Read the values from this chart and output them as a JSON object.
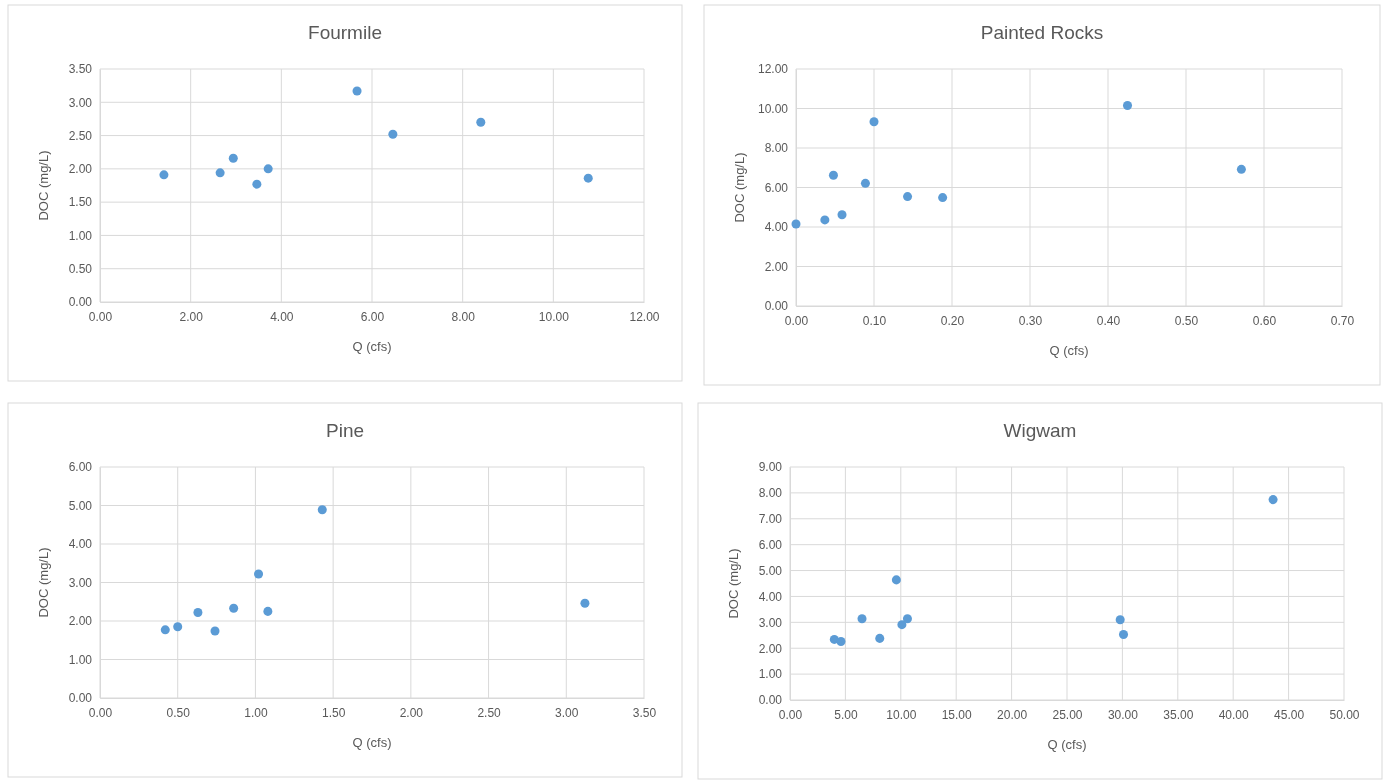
{
  "chart_data": [
    {
      "type": "scatter",
      "title": "Fourmile",
      "xlabel": "Q (cfs)",
      "ylabel": "DOC (mg/L)",
      "grid": true,
      "marker": "circle",
      "xlim": [
        0,
        12
      ],
      "xticks": [
        {
          "value": 0,
          "label": "0.00"
        },
        {
          "value": 2,
          "label": "2.00"
        },
        {
          "value": 4,
          "label": "4.00"
        },
        {
          "value": 6,
          "label": "6.00"
        },
        {
          "value": 8,
          "label": "8.00"
        },
        {
          "value": 10,
          "label": "10.00"
        },
        {
          "value": 12,
          "label": "12.00"
        }
      ],
      "ylim": [
        0,
        3.5
      ],
      "yticks": [
        {
          "value": 0,
          "label": "0.00"
        },
        {
          "value": 0.5,
          "label": "0.50"
        },
        {
          "value": 1,
          "label": "1.00"
        },
        {
          "value": 1.5,
          "label": "1.50"
        },
        {
          "value": 2,
          "label": "2.00"
        },
        {
          "value": 2.5,
          "label": "2.50"
        },
        {
          "value": 3,
          "label": "3.00"
        },
        {
          "value": 3.5,
          "label": "3.50"
        }
      ],
      "series": [
        {
          "color": "#5b9bd5",
          "x": [
            1.41,
            2.65,
            2.94,
            3.46,
            3.71,
            5.67,
            6.46,
            8.4,
            10.77
          ],
          "values": [
            1.91,
            1.94,
            2.16,
            1.77,
            2.0,
            3.17,
            2.52,
            2.7,
            1.86
          ]
        }
      ]
    },
    {
      "type": "scatter",
      "title": "Painted Rocks",
      "xlabel": "Q (cfs)",
      "ylabel": "DOC (mg/L)",
      "grid": true,
      "marker": "circle",
      "xlim": [
        0,
        0.7
      ],
      "xticks": [
        {
          "value": 0,
          "label": "0.00"
        },
        {
          "value": 0.1,
          "label": "0.10"
        },
        {
          "value": 0.2,
          "label": "0.20"
        },
        {
          "value": 0.3,
          "label": "0.30"
        },
        {
          "value": 0.4,
          "label": "0.40"
        },
        {
          "value": 0.5,
          "label": "0.50"
        },
        {
          "value": 0.6,
          "label": "0.60"
        },
        {
          "value": 0.7,
          "label": "0.70"
        }
      ],
      "ylim": [
        0,
        12
      ],
      "yticks": [
        {
          "value": 0,
          "label": "0.00"
        },
        {
          "value": 2,
          "label": "2.00"
        },
        {
          "value": 4,
          "label": "4.00"
        },
        {
          "value": 6,
          "label": "6.00"
        },
        {
          "value": 8,
          "label": "8.00"
        },
        {
          "value": 10,
          "label": "10.00"
        },
        {
          "value": 12,
          "label": "12.00"
        }
      ],
      "series": [
        {
          "color": "#5b9bd5",
          "x": [
            0.0,
            0.037,
            0.048,
            0.059,
            0.089,
            0.1,
            0.143,
            0.188,
            0.425,
            0.571
          ],
          "values": [
            4.15,
            4.36,
            6.62,
            4.62,
            6.21,
            9.33,
            5.54,
            5.49,
            10.15,
            6.92
          ]
        }
      ]
    },
    {
      "type": "scatter",
      "title": "Pine",
      "xlabel": "Q (cfs)",
      "ylabel": "DOC (mg/L)",
      "grid": true,
      "marker": "circle",
      "xlim": [
        0,
        3.5
      ],
      "xticks": [
        {
          "value": 0,
          "label": "0.00"
        },
        {
          "value": 0.5,
          "label": "0.50"
        },
        {
          "value": 1,
          "label": "1.00"
        },
        {
          "value": 1.5,
          "label": "1.50"
        },
        {
          "value": 2,
          "label": "2.00"
        },
        {
          "value": 2.5,
          "label": "2.50"
        },
        {
          "value": 3,
          "label": "3.00"
        },
        {
          "value": 3.5,
          "label": "3.50"
        }
      ],
      "ylim": [
        0,
        6
      ],
      "yticks": [
        {
          "value": 0,
          "label": "0.00"
        },
        {
          "value": 1,
          "label": "1.00"
        },
        {
          "value": 2,
          "label": "2.00"
        },
        {
          "value": 3,
          "label": "3.00"
        },
        {
          "value": 4,
          "label": "4.00"
        },
        {
          "value": 5,
          "label": "5.00"
        },
        {
          "value": 6,
          "label": "6.00"
        }
      ],
      "series": [
        {
          "color": "#5b9bd5",
          "x": [
            0.42,
            0.5,
            0.63,
            0.74,
            0.86,
            1.02,
            1.08,
            1.43,
            3.12
          ],
          "values": [
            1.77,
            1.85,
            2.22,
            1.74,
            2.33,
            3.22,
            2.25,
            4.89,
            2.46
          ]
        }
      ]
    },
    {
      "type": "scatter",
      "title": "Wigwam",
      "xlabel": "Q (cfs)",
      "ylabel": "DOC (mg/L)",
      "grid": true,
      "marker": "circle",
      "xlim": [
        0,
        50
      ],
      "xticks": [
        {
          "value": 0,
          "label": "0.00"
        },
        {
          "value": 5,
          "label": "5.00"
        },
        {
          "value": 10,
          "label": "10.00"
        },
        {
          "value": 15,
          "label": "15.00"
        },
        {
          "value": 20,
          "label": "20.00"
        },
        {
          "value": 25,
          "label": "25.00"
        },
        {
          "value": 30,
          "label": "30.00"
        },
        {
          "value": 35,
          "label": "35.00"
        },
        {
          "value": 40,
          "label": "40.00"
        },
        {
          "value": 45,
          "label": "45.00"
        },
        {
          "value": 50,
          "label": "50.00"
        }
      ],
      "ylim": [
        0,
        9
      ],
      "yticks": [
        {
          "value": 0,
          "label": "0.00"
        },
        {
          "value": 1,
          "label": "1.00"
        },
        {
          "value": 2,
          "label": "2.00"
        },
        {
          "value": 3,
          "label": "3.00"
        },
        {
          "value": 4,
          "label": "4.00"
        },
        {
          "value": 5,
          "label": "5.00"
        },
        {
          "value": 6,
          "label": "6.00"
        },
        {
          "value": 7,
          "label": "7.00"
        },
        {
          "value": 8,
          "label": "8.00"
        },
        {
          "value": 9,
          "label": "9.00"
        }
      ],
      "series": [
        {
          "color": "#5b9bd5",
          "x": [
            4.0,
            4.6,
            6.5,
            8.1,
            9.6,
            10.1,
            10.6,
            29.8,
            30.1,
            43.6
          ],
          "values": [
            2.34,
            2.26,
            3.14,
            2.38,
            4.64,
            2.91,
            3.14,
            3.1,
            2.53,
            7.74
          ]
        }
      ]
    }
  ]
}
